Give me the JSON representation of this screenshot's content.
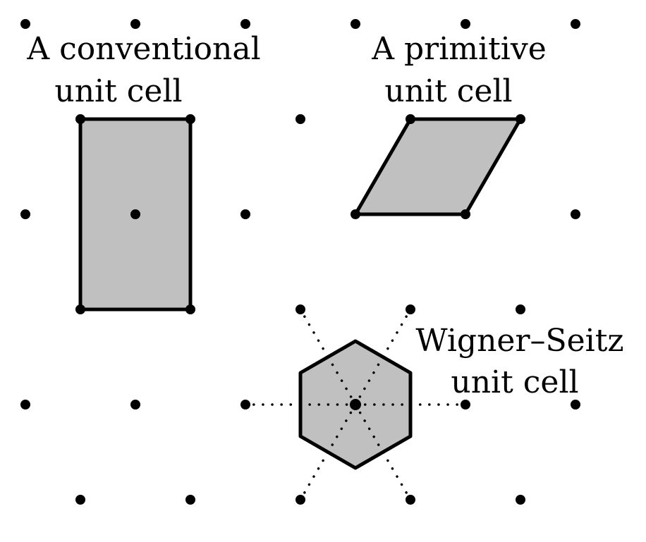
{
  "diagram": {
    "labels": {
      "conventional": [
        "A conventional",
        "unit cell"
      ],
      "primitive": [
        "A primitive",
        "unit cell"
      ],
      "wigner_seitz": [
        "Wigner–Seitz",
        "unit cell"
      ]
    },
    "colors": {
      "cell_fill": "#c0c0c0",
      "outline": "#000000",
      "background": "#ffffff"
    }
  }
}
